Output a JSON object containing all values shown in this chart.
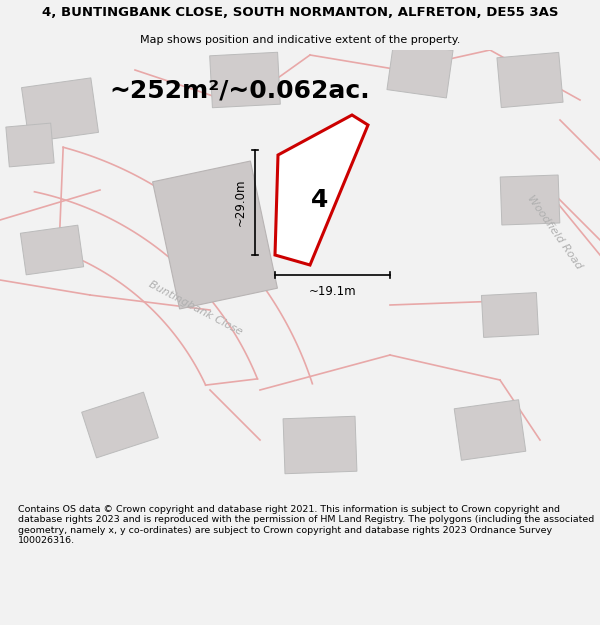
{
  "title": "4, BUNTINGBANK CLOSE, SOUTH NORMANTON, ALFRETON, DE55 3AS",
  "subtitle": "Map shows position and indicative extent of the property.",
  "area_text": "~252m²/~0.062ac.",
  "property_label": "4",
  "dim_width": "~19.1m",
  "dim_height": "~29.0m",
  "road_label_1": "Buntingbank Close",
  "road_label_2": "Woodfield Road",
  "footer": "Contains OS data © Crown copyright and database right 2021. This information is subject to Crown copyright and database rights 2023 and is reproduced with the permission of HM Land Registry. The polygons (including the associated geometry, namely x, y co-ordinates) are subject to Crown copyright and database rights 2023 Ordnance Survey 100026316.",
  "bg_color": "#f2f2f2",
  "map_bg": "#ede8e8",
  "plot_color": "#ffffff",
  "plot_outline": "#cc0000",
  "building_fill": "#d0cccc",
  "road_outline": "#e8a8a8",
  "dim_color": "#111111",
  "road_text_color": "#b0b0b0",
  "title_fontsize": 9.5,
  "subtitle_fontsize": 8,
  "area_fontsize": 18,
  "footer_fontsize": 6.8
}
